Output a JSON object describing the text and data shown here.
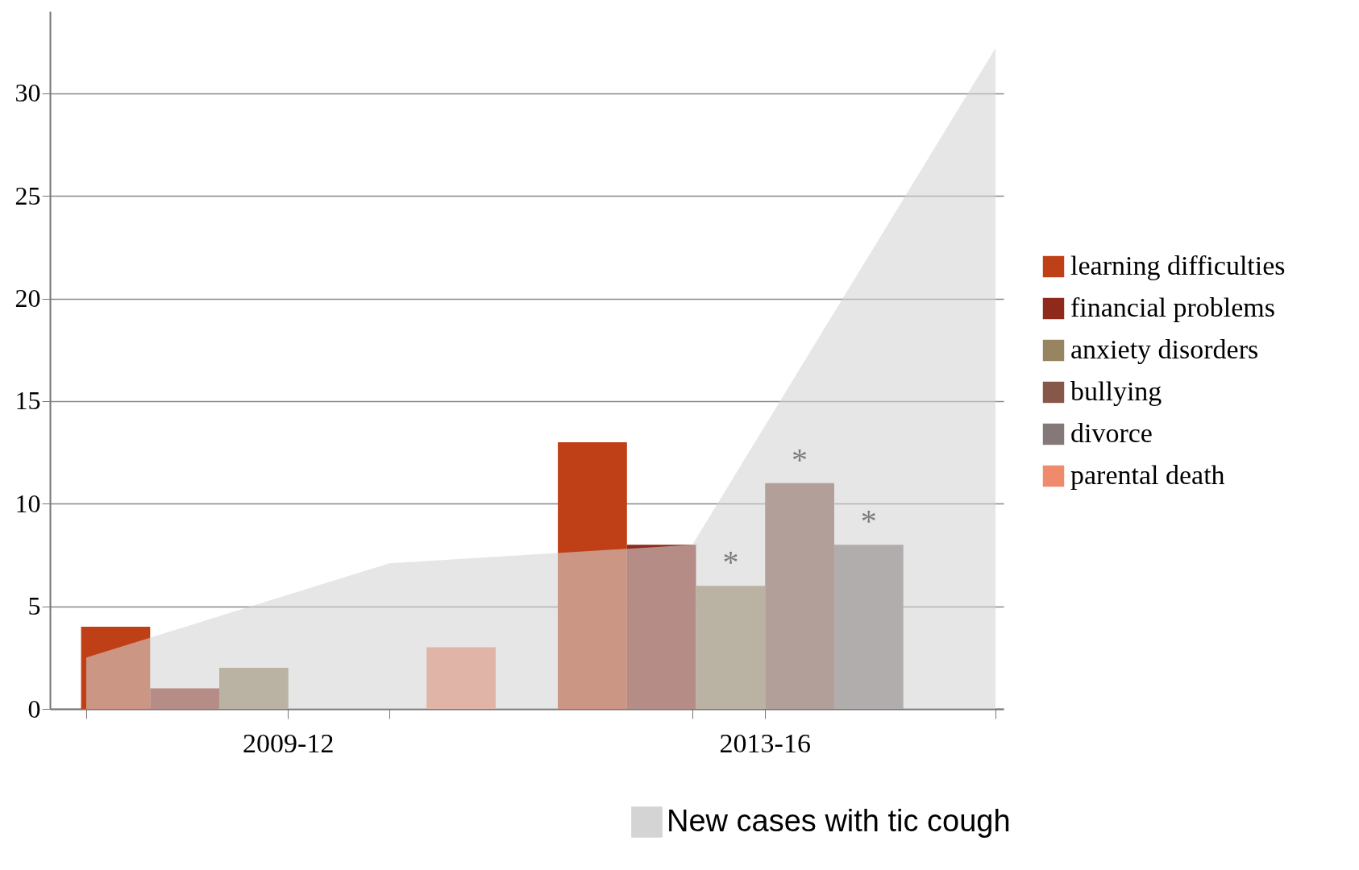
{
  "chart_data": [
    {
      "type": "bar",
      "categories": [
        "2009-12",
        "2013-16"
      ],
      "series": [
        {
          "name": "learning difficulties",
          "color": "#bf4016",
          "values": [
            4,
            13
          ]
        },
        {
          "name": "financial problems",
          "color": "#8e2a1c",
          "values": [
            1,
            8
          ]
        },
        {
          "name": "anxiety disorders",
          "color": "#968560",
          "values": [
            2,
            6
          ],
          "value_labels": [
            null,
            "*"
          ]
        },
        {
          "name": "bullying",
          "color": "#87574a",
          "values": [
            null,
            11
          ],
          "value_labels": [
            null,
            "*"
          ]
        },
        {
          "name": "divorce",
          "color": "#847878",
          "values": [
            null,
            8
          ],
          "value_labels": [
            null,
            "*"
          ]
        },
        {
          "name": "parental death",
          "color": "#f08a6c",
          "values": [
            3,
            null
          ]
        }
      ],
      "ylim": [
        0,
        34
      ],
      "yticks": [
        0,
        5,
        10,
        15,
        20,
        25,
        30
      ],
      "tick_labels": "x",
      "grid": "y",
      "legend": "right"
    },
    {
      "type": "area",
      "categories": [
        null,
        null,
        null,
        null
      ],
      "series": [
        {
          "name": "New cases with tic cough",
          "color": "#d4d4d4",
          "values": [
            2.5,
            7.1,
            8,
            32.2
          ]
        }
      ],
      "ylim": [
        0,
        34
      ],
      "yticks": [
        0,
        5,
        10,
        15,
        20,
        25,
        30
      ],
      "legend": "bottom"
    }
  ]
}
